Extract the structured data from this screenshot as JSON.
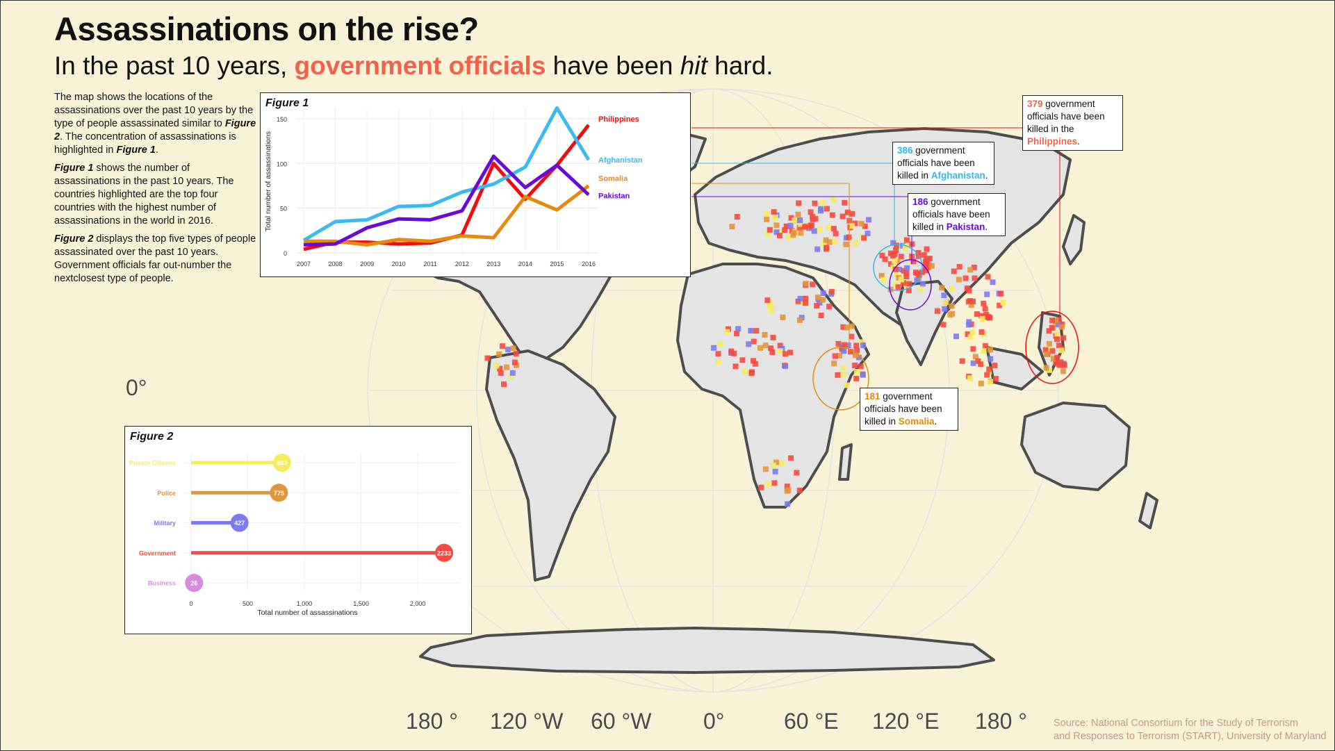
{
  "title": "Assassinations on the rise?",
  "subtitle": {
    "part1": "In the past 10 years, ",
    "highlight": "government officials",
    "part2": " have been ",
    "italic": "hit",
    "part3": " hard."
  },
  "intro": {
    "p1a": "The map shows the locations of the assassinations over the past 10 years by the type of people assassinated similar to ",
    "p1b": "Figure 2",
    "p1c": ". The concentration of assassinations is highlighted in ",
    "p1d": "Figure 1",
    "p1e": ".",
    "p2a": "Figure 1",
    "p2b": " shows the number of assassinations in the past 10 years. The countries highlighted are the top four countries with the highest number of assassinations in the world in 2016.",
    "p3a": "Figure 2",
    "p3b": " displays the top five types of people assassinated over the past 10 years. Government officials far out-number the nextclosest type of people."
  },
  "callouts": [
    {
      "num": "379",
      "line1": " government",
      "line2": "officials have been",
      "line3": "killed in the",
      "country": "Philippines",
      "end": ".",
      "color": "#f26149"
    },
    {
      "num": "386",
      "line1": " government",
      "line2": "officials have been",
      "line3": "killed in ",
      "country": "Afghanistan",
      "end": ".",
      "color": "#33b5f0"
    },
    {
      "num": "186",
      "line1": " government",
      "line2": "officials have been",
      "line3": "killed in ",
      "country": "Pakistan",
      "end": ".",
      "color": "#6a0ad6"
    },
    {
      "num": "181",
      "line1": " government",
      "line2": "officials have been",
      "line3": "killed in ",
      "country": "Somalia",
      "end": ".",
      "color": "#e28a0d"
    }
  ],
  "longitude_labels": [
    "180 °",
    "120 °W",
    "60 °W",
    "0°",
    "60 °E",
    "120 °E",
    "180 °"
  ],
  "latitude_label": "0°",
  "source": {
    "line1": "Source: National Consortium for the Study of Terrorism",
    "line2": "and Responses to Terrorism (START), University of Maryland"
  },
  "map": {
    "land_color": "#e4e4e4",
    "border_color": "#4d4d4d",
    "category_colors": {
      "Private Citizens": "#f7ec5e",
      "Police": "#e2953a",
      "Military": "#7b7bf0",
      "Government": "#f54a3f",
      "Business": "#d98bdf"
    }
  },
  "chart_data": [
    {
      "type": "line",
      "label": "Figure 1",
      "title": "",
      "xlabel": "",
      "ylabel": "Total number of assassinations",
      "x": [
        2007,
        2008,
        2009,
        2010,
        2011,
        2012,
        2013,
        2014,
        2015,
        2016
      ],
      "ylim": [
        0,
        160
      ],
      "yticks": [
        0,
        50,
        100,
        150
      ],
      "grid": true,
      "legend": "end-of-line labels",
      "series": [
        {
          "name": "Philippines",
          "color": "#f20c0c",
          "values": [
            4,
            12,
            12,
            10,
            11,
            20,
            100,
            60,
            98,
            143
          ]
        },
        {
          "name": "Afghanistan",
          "color": "#3ab9f2",
          "values": [
            14,
            35,
            37,
            52,
            53,
            68,
            77,
            96,
            162,
            104
          ]
        },
        {
          "name": "Somalia",
          "color": "#e8890c",
          "values": [
            13,
            13,
            9,
            15,
            13,
            19,
            17,
            63,
            48,
            75
          ]
        },
        {
          "name": "Pakistan",
          "color": "#6a0ad6",
          "values": [
            9,
            10,
            28,
            38,
            37,
            47,
            108,
            73,
            98,
            65
          ]
        }
      ]
    },
    {
      "type": "bar",
      "label": "Figure 2",
      "title": "",
      "xlabel": "Total number of assassinations",
      "ylabel": "",
      "xlim": [
        0,
        2300
      ],
      "xticks": [
        0,
        500,
        1000,
        1500,
        2000
      ],
      "xtick_labels": [
        "0",
        "500",
        "1,000",
        "1,500",
        "2,000"
      ],
      "grid": true,
      "categories": [
        "Private Citizens",
        "Police",
        "Military",
        "Government",
        "Business"
      ],
      "values": [
        803,
        775,
        427,
        2233,
        26
      ],
      "colors": [
        "#f7ec5e",
        "#e2953a",
        "#7b7bf0",
        "#f54a3f",
        "#d98bdf"
      ]
    }
  ]
}
